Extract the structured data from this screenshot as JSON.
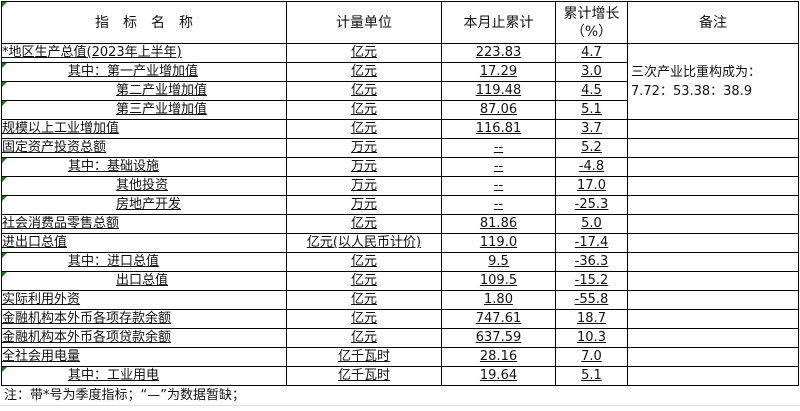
{
  "header": {
    "name": "指　标　名　称",
    "unit": "计量单位",
    "cumulative": "本月止累计",
    "growth_line1": "累计增长",
    "growth_line2": "（%）",
    "note": "备注"
  },
  "rows": [
    {
      "name": "*地区生产总值(2023年上半年)",
      "indent": 0,
      "unit": "亿元",
      "value": "223.83",
      "growth": "4.7"
    },
    {
      "name": "其中：第一产业增加值",
      "indent": 1,
      "unit": "亿元",
      "value": "17.29",
      "growth": "3.0"
    },
    {
      "name": "第二产业增加值",
      "indent": 2,
      "unit": "亿元",
      "value": "119.48",
      "growth": "4.5"
    },
    {
      "name": "第三产业增加值",
      "indent": 2,
      "unit": "亿元",
      "value": "87.06",
      "growth": "5.1"
    },
    {
      "name": "规模以上工业增加值",
      "indent": 0,
      "unit": "亿元",
      "value": "116.81",
      "growth": "3.7"
    },
    {
      "name": "固定资产投资总额",
      "indent": 0,
      "unit": "万元",
      "value": "--",
      "growth": "5.2"
    },
    {
      "name": "其中：基础设施",
      "indent": 1,
      "unit": "万元",
      "value": "--",
      "growth": "-4.8"
    },
    {
      "name": "其他投资",
      "indent": 2,
      "unit": "万元",
      "value": "--",
      "growth": "17.0"
    },
    {
      "name": "房地产开发",
      "indent": 2,
      "unit": "万元",
      "value": "--",
      "growth": "-25.3"
    },
    {
      "name": "社会消费品零售总额",
      "indent": 0,
      "unit": "亿元",
      "value": "81.86",
      "growth": "5.0"
    },
    {
      "name": "进出口总值",
      "indent": 0,
      "unit": "亿元(以人民币计价)",
      "value": "119.0",
      "growth": "-17.4"
    },
    {
      "name": "其中：进口总值",
      "indent": 1,
      "unit": "亿元",
      "value": "9.5",
      "growth": "-36.3"
    },
    {
      "name": "出口总值",
      "indent": 2,
      "unit": "亿元",
      "value": "109.5",
      "growth": "-15.2"
    },
    {
      "name": "实际利用外资",
      "indent": 0,
      "unit": "亿元",
      "value": "1.80",
      "growth": "-55.8"
    },
    {
      "name": "金融机构本外币各项存款余额",
      "indent": 0,
      "unit": "亿元",
      "value": "747.61",
      "growth": "18.7"
    },
    {
      "name": "金融机构本外币各项贷款余额",
      "indent": 0,
      "unit": "亿元",
      "value": "637.59",
      "growth": "10.3"
    },
    {
      "name": "全社会用电量",
      "indent": 0,
      "unit": "亿千瓦时",
      "value": "28.16",
      "growth": "7.0"
    },
    {
      "name": "其中：工业用电",
      "indent": 1,
      "unit": "亿千瓦时",
      "value": "19.64",
      "growth": "5.1"
    }
  ],
  "remark": {
    "line1": "三次产业比重构成为：",
    "line2": "7.72：53.38：38.9"
  },
  "footnote": "注：带*号为季度指标；“—”为数据暂缺；",
  "colors": {
    "marker": "#1a7a1a",
    "border": "#000000"
  }
}
